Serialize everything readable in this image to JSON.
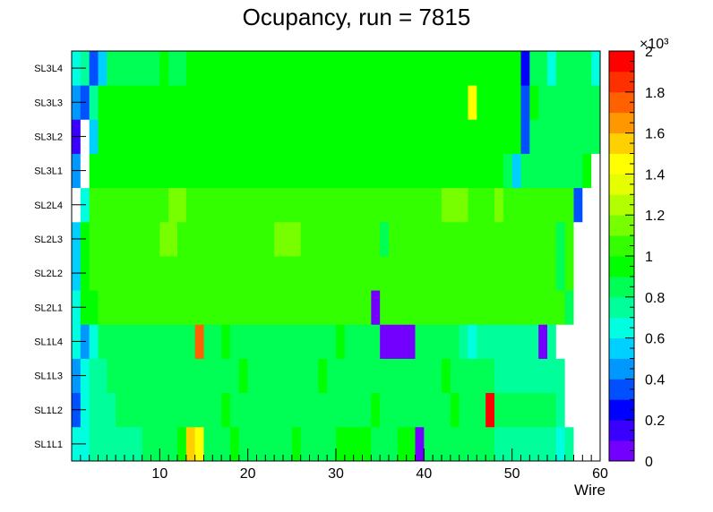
{
  "chart_data": {
    "type": "heatmap",
    "title": "Ocupancy, run = 7815",
    "xlabel": "Wire",
    "ylabel": "",
    "xlim": [
      0,
      60
    ],
    "x_ticks": [
      "10",
      "20",
      "30",
      "40",
      "50",
      "60"
    ],
    "x_tick_values": [
      10,
      20,
      30,
      40,
      50,
      60
    ],
    "rows": [
      "SL1L1",
      "SL1L2",
      "SL1L3",
      "SL1L4",
      "SL2L1",
      "SL2L2",
      "SL2L3",
      "SL2L4",
      "SL3L1",
      "SL3L2",
      "SL3L3",
      "SL3L4"
    ],
    "zlim": [
      0,
      2000
    ],
    "z_scale_label": "×10³",
    "z_ticks": [
      "0",
      "0.2",
      "0.4",
      "0.6",
      "0.8",
      "1",
      "1.2",
      "1.4",
      "1.6",
      "1.8",
      "2"
    ],
    "z_tick_values": [
      0,
      0.2,
      0.4,
      0.6,
      0.8,
      1.0,
      1.2,
      1.4,
      1.6,
      1.8,
      2.0
    ],
    "palette": [
      "#7300ff",
      "#3a00ff",
      "#0000ff",
      "#0050ff",
      "#0098ff",
      "#00d0ff",
      "#00ffe0",
      "#00ff9a",
      "#00ff55",
      "#00ff00",
      "#33ff00",
      "#77ff00",
      "#b3ff00",
      "#e6ff00",
      "#ffff00",
      "#ffd000",
      "#ff9800",
      "#ff6000",
      "#ff3000",
      "#ff0000"
    ],
    "empty_color": "#ffffff",
    "cell_values": [
      [
        600,
        600,
        750,
        750,
        750,
        750,
        750,
        750,
        850,
        850,
        850,
        850,
        900,
        1550,
        1450,
        850,
        850,
        850,
        900,
        850,
        850,
        850,
        850,
        850,
        850,
        900,
        850,
        850,
        850,
        850,
        950,
        950,
        900,
        900,
        850,
        850,
        850,
        950,
        950,
        80,
        850,
        850,
        800,
        800,
        800,
        850,
        850,
        800,
        750,
        750,
        750,
        750,
        750,
        750,
        700,
        600,
        700,
        null,
        null,
        null
      ],
      [
        350,
        600,
        700,
        700,
        700,
        800,
        800,
        800,
        800,
        800,
        850,
        850,
        850,
        800,
        850,
        850,
        850,
        900,
        850,
        850,
        850,
        850,
        850,
        850,
        850,
        800,
        850,
        850,
        850,
        850,
        850,
        850,
        850,
        850,
        900,
        850,
        850,
        850,
        850,
        850,
        850,
        850,
        850,
        900,
        850,
        850,
        850,
        1950,
        850,
        850,
        850,
        850,
        850,
        850,
        850,
        700,
        null,
        null,
        null,
        null
      ],
      [
        450,
        600,
        750,
        750,
        800,
        800,
        800,
        800,
        800,
        800,
        850,
        850,
        850,
        800,
        850,
        800,
        850,
        850,
        850,
        900,
        850,
        850,
        850,
        850,
        850,
        800,
        850,
        850,
        900,
        850,
        850,
        850,
        850,
        850,
        850,
        850,
        850,
        850,
        850,
        850,
        850,
        850,
        900,
        850,
        850,
        800,
        800,
        800,
        700,
        700,
        700,
        700,
        700,
        700,
        700,
        700,
        null,
        null,
        null,
        null
      ],
      [
        600,
        450,
        650,
        800,
        800,
        800,
        800,
        800,
        800,
        850,
        850,
        850,
        850,
        850,
        1700,
        850,
        850,
        900,
        850,
        850,
        850,
        850,
        850,
        850,
        850,
        800,
        850,
        850,
        850,
        850,
        900,
        850,
        850,
        850,
        850,
        80,
        80,
        80,
        80,
        850,
        850,
        850,
        850,
        850,
        700,
        650,
        700,
        700,
        700,
        700,
        700,
        700,
        700,
        80,
        750,
        null,
        null,
        null,
        null,
        null
      ],
      [
        650,
        950,
        950,
        1050,
        1000,
        1000,
        1000,
        1050,
        1050,
        1000,
        1000,
        1050,
        1000,
        1000,
        1050,
        1000,
        1000,
        1000,
        1000,
        1000,
        1050,
        1000,
        1000,
        1000,
        1000,
        1000,
        1050,
        1000,
        1000,
        1000,
        1000,
        1000,
        1000,
        1000,
        80,
        1000,
        1000,
        1000,
        1000,
        1000,
        1000,
        1050,
        1000,
        1050,
        1000,
        1000,
        1000,
        1000,
        1000,
        1000,
        1000,
        1000,
        1050,
        1000,
        1000,
        1000,
        850,
        null,
        null,
        null
      ],
      [
        500,
        950,
        1000,
        1000,
        1000,
        1000,
        1000,
        1050,
        1000,
        1050,
        1050,
        1000,
        1000,
        1000,
        1000,
        1000,
        1000,
        1000,
        1050,
        1000,
        1050,
        1000,
        1000,
        1000,
        1000,
        1050,
        1000,
        1000,
        1050,
        1000,
        1050,
        1000,
        1000,
        1000,
        1000,
        1000,
        1000,
        1000,
        1050,
        1000,
        1000,
        1000,
        1000,
        1000,
        1000,
        1000,
        1000,
        1000,
        1050,
        1050,
        1000,
        1000,
        1000,
        1000,
        1000,
        850,
        1000,
        null,
        null,
        null
      ],
      [
        550,
        950,
        1000,
        1000,
        1000,
        1050,
        1000,
        1000,
        1000,
        1000,
        1100,
        1100,
        1050,
        1000,
        1000,
        1050,
        1000,
        1000,
        1000,
        1000,
        1000,
        1000,
        1050,
        1100,
        1100,
        1100,
        1050,
        1000,
        1050,
        1000,
        1050,
        1000,
        1000,
        1000,
        1000,
        850,
        1000,
        1000,
        1000,
        1000,
        1000,
        1000,
        1050,
        1000,
        1050,
        1000,
        1000,
        1000,
        1000,
        1050,
        1000,
        1000,
        1000,
        1000,
        1000,
        850,
        1000,
        null,
        null,
        null
      ],
      [
        null,
        650,
        1000,
        1050,
        1000,
        1050,
        1000,
        1000,
        1050,
        1050,
        1050,
        1100,
        1100,
        1050,
        1000,
        1050,
        1050,
        1000,
        1050,
        1000,
        1000,
        1050,
        1000,
        1000,
        1050,
        1000,
        1050,
        1000,
        1000,
        1050,
        1050,
        1000,
        1000,
        1000,
        1000,
        1050,
        1000,
        1000,
        1000,
        1050,
        1000,
        1000,
        1100,
        1100,
        1100,
        1050,
        1000,
        1000,
        1100,
        1000,
        1050,
        1000,
        1050,
        1000,
        1050,
        1050,
        1000,
        300,
        null,
        null
      ],
      [
        450,
        null,
        900,
        950,
        950,
        950,
        900,
        950,
        900,
        900,
        950,
        950,
        950,
        950,
        950,
        950,
        950,
        950,
        950,
        950,
        950,
        950,
        950,
        950,
        950,
        950,
        950,
        950,
        900,
        950,
        950,
        950,
        950,
        950,
        950,
        950,
        950,
        950,
        950,
        950,
        950,
        950,
        950,
        950,
        950,
        950,
        950,
        950,
        950,
        850,
        550,
        850,
        850,
        850,
        850,
        850,
        850,
        850,
        900,
        null
      ],
      [
        150,
        null,
        550,
        900,
        950,
        950,
        900,
        950,
        950,
        950,
        950,
        950,
        950,
        950,
        950,
        950,
        950,
        950,
        950,
        950,
        950,
        950,
        950,
        950,
        950,
        950,
        950,
        900,
        950,
        950,
        950,
        950,
        900,
        950,
        950,
        950,
        950,
        950,
        950,
        950,
        950,
        900,
        950,
        950,
        950,
        950,
        950,
        950,
        950,
        950,
        950,
        300,
        850,
        850,
        800,
        850,
        850,
        800,
        800,
        850
      ],
      [
        400,
        300,
        750,
        950,
        950,
        900,
        950,
        950,
        950,
        950,
        950,
        950,
        950,
        950,
        950,
        950,
        950,
        950,
        950,
        950,
        950,
        950,
        950,
        950,
        950,
        950,
        950,
        950,
        950,
        950,
        950,
        950,
        950,
        950,
        950,
        950,
        950,
        950,
        950,
        950,
        950,
        950,
        950,
        950,
        950,
        1450,
        950,
        950,
        950,
        950,
        950,
        300,
        950,
        800,
        800,
        850,
        850,
        850,
        850,
        850
      ],
      [
        650,
        750,
        300,
        550,
        850,
        850,
        850,
        850,
        850,
        850,
        900,
        850,
        850,
        950,
        950,
        950,
        950,
        950,
        950,
        950,
        950,
        950,
        950,
        950,
        950,
        950,
        950,
        950,
        950,
        950,
        950,
        950,
        950,
        950,
        950,
        950,
        950,
        950,
        950,
        950,
        950,
        950,
        950,
        950,
        950,
        950,
        950,
        950,
        950,
        950,
        950,
        200,
        800,
        850,
        600,
        850,
        850,
        850,
        850,
        650
      ]
    ]
  }
}
